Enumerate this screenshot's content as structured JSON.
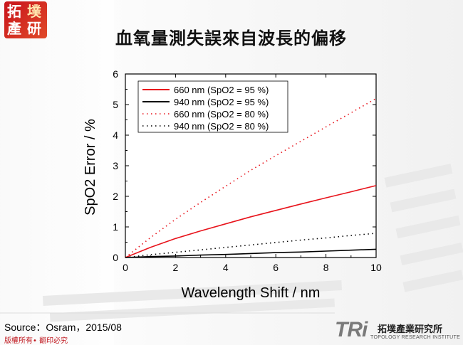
{
  "header": {
    "logo_chars": [
      "拓",
      "墣",
      "產",
      "研"
    ],
    "title": "血氧量測失誤來自波長的偏移"
  },
  "footer": {
    "source": "Source：Osram，2015/08",
    "copyright": "版權所有• 翻印必究",
    "brand_mark": "TRi",
    "brand_cn": "拓墣產業研究所",
    "brand_en": "TOPOLOGY RESEARCH INSTITUTE"
  },
  "chart_data": {
    "type": "line",
    "title": "",
    "xlabel": "Wavelength Shift / nm",
    "ylabel": "SpO2 Error / %",
    "xlim": [
      0,
      10
    ],
    "ylim": [
      0,
      6
    ],
    "xticks": [
      0,
      2,
      4,
      6,
      8,
      10
    ],
    "yticks": [
      0,
      1,
      2,
      3,
      4,
      5,
      6
    ],
    "legend_position": "top-left",
    "series": [
      {
        "name": "660 nm  (SpO2 = 95 %)",
        "color": "#e8141c",
        "style": "solid",
        "x": [
          0,
          1,
          2,
          3,
          4,
          5,
          6,
          7,
          8,
          9,
          10
        ],
        "y": [
          0,
          0.33,
          0.62,
          0.87,
          1.1,
          1.33,
          1.54,
          1.75,
          1.95,
          2.15,
          2.35
        ]
      },
      {
        "name": "940 nm  (SpO2 = 95 %)",
        "color": "#000000",
        "style": "solid",
        "x": [
          0,
          1,
          2,
          3,
          4,
          5,
          6,
          7,
          8,
          9,
          10
        ],
        "y": [
          0,
          0.03,
          0.05,
          0.08,
          0.1,
          0.13,
          0.16,
          0.18,
          0.21,
          0.24,
          0.27
        ]
      },
      {
        "name": "660 nm (SpO2 = 80 %)",
        "color": "#e8141c",
        "style": "dotted",
        "x": [
          0,
          1,
          2,
          3,
          4,
          5,
          6,
          7,
          8,
          9,
          10
        ],
        "y": [
          0,
          0.65,
          1.25,
          1.8,
          2.33,
          2.85,
          3.33,
          3.8,
          4.27,
          4.73,
          5.2
        ]
      },
      {
        "name": "940 nm  (SpO2 = 80 %)",
        "color": "#000000",
        "style": "dotted",
        "x": [
          0,
          1,
          2,
          3,
          4,
          5,
          6,
          7,
          8,
          9,
          10
        ],
        "y": [
          0,
          0.09,
          0.17,
          0.25,
          0.33,
          0.41,
          0.49,
          0.57,
          0.64,
          0.72,
          0.79
        ]
      }
    ]
  }
}
